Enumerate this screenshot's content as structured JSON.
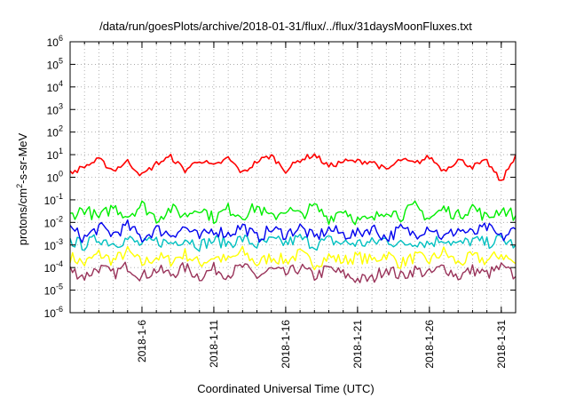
{
  "chart_data": {
    "type": "line",
    "title": "/data/run/goesPlots/archive/2018-01-31/flux/../flux/31daysMoonFluxes.txt",
    "xlabel": "Coordinated Universal Time (UTC)",
    "ylabel_parts": {
      "base": "protons/cm",
      "exp": "2",
      "rest": "-s-sr-MeV"
    },
    "xlim": [
      "2018-01-01",
      "2018-02-01"
    ],
    "ylim": [
      1e-06,
      1000000.0
    ],
    "yscale": "log",
    "grid": true,
    "x_ticks": [
      {
        "label": "2018-1-6",
        "date": "2018-01-06"
      },
      {
        "label": "2018-1-11",
        "date": "2018-01-11"
      },
      {
        "label": "2018-1-16",
        "date": "2018-01-16"
      },
      {
        "label": "2018-1-21",
        "date": "2018-01-21"
      },
      {
        "label": "2018-1-26",
        "date": "2018-01-26"
      },
      {
        "label": "2018-1-31",
        "date": "2018-01-31"
      }
    ],
    "y_ticks": [
      {
        "base": "10",
        "exp": "-6",
        "value": 1e-06
      },
      {
        "base": "10",
        "exp": "-5",
        "value": 1e-05
      },
      {
        "base": "10",
        "exp": "-4",
        "value": 0.0001
      },
      {
        "base": "10",
        "exp": "-3",
        "value": 0.001
      },
      {
        "base": "10",
        "exp": "-2",
        "value": 0.01
      },
      {
        "base": "10",
        "exp": "-1",
        "value": 0.1
      },
      {
        "base": "10",
        "exp": "0",
        "value": 1
      },
      {
        "base": "10",
        "exp": "1",
        "value": 10
      },
      {
        "base": "10",
        "exp": "2",
        "value": 100
      },
      {
        "base": "10",
        "exp": "3",
        "value": 1000
      },
      {
        "base": "10",
        "exp": "4",
        "value": 10000
      },
      {
        "base": "10",
        "exp": "5",
        "value": 100000
      },
      {
        "base": "10",
        "exp": "6",
        "value": 1000000
      }
    ],
    "series": [
      {
        "color": "#ff0000",
        "x": [
          "2018-01-01",
          "2018-01-02",
          "2018-01-03",
          "2018-01-04",
          "2018-01-05",
          "2018-01-06",
          "2018-01-07",
          "2018-01-08",
          "2018-01-09",
          "2018-01-10",
          "2018-01-11",
          "2018-01-12",
          "2018-01-13",
          "2018-01-14",
          "2018-01-15",
          "2018-01-16",
          "2018-01-17",
          "2018-01-18",
          "2018-01-19",
          "2018-01-20",
          "2018-01-21",
          "2018-01-22",
          "2018-01-23",
          "2018-01-24",
          "2018-01-25",
          "2018-01-26",
          "2018-01-27",
          "2018-01-28",
          "2018-01-29",
          "2018-01-30",
          "2018-01-31",
          "2018-02-01"
        ],
        "values": [
          1.5,
          3,
          6,
          2,
          5,
          1.2,
          4,
          8,
          2,
          6,
          3,
          7,
          1.5,
          5,
          9,
          2,
          6,
          10,
          3,
          5,
          5,
          5,
          2,
          6,
          4,
          8,
          2,
          6,
          3,
          5,
          0.6,
          10
        ]
      },
      {
        "color": "#00ee00",
        "x": [
          "2018-01-01",
          "2018-01-02",
          "2018-01-03",
          "2018-01-04",
          "2018-01-05",
          "2018-01-06",
          "2018-01-07",
          "2018-01-08",
          "2018-01-09",
          "2018-01-10",
          "2018-01-11",
          "2018-01-12",
          "2018-01-13",
          "2018-01-14",
          "2018-01-15",
          "2018-01-16",
          "2018-01-17",
          "2018-01-18",
          "2018-01-19",
          "2018-01-20",
          "2018-01-21",
          "2018-01-22",
          "2018-01-23",
          "2018-01-24",
          "2018-01-25",
          "2018-01-26",
          "2018-01-27",
          "2018-01-28",
          "2018-01-29",
          "2018-01-30",
          "2018-01-31",
          "2018-02-01"
        ],
        "values": [
          0.02,
          0.04,
          0.015,
          0.05,
          0.02,
          0.06,
          0.015,
          0.04,
          0.02,
          0.05,
          0.015,
          0.04,
          0.02,
          0.05,
          0.015,
          0.04,
          0.02,
          0.05,
          0.015,
          0.04,
          0.012,
          0.012,
          0.04,
          0.02,
          0.05,
          0.015,
          0.04,
          0.02,
          0.05,
          0.015,
          0.04,
          0.02
        ]
      },
      {
        "color": "#0000ee",
        "x": [
          "2018-01-01",
          "2018-01-02",
          "2018-01-03",
          "2018-01-04",
          "2018-01-05",
          "2018-01-06",
          "2018-01-07",
          "2018-01-08",
          "2018-01-09",
          "2018-01-10",
          "2018-01-11",
          "2018-01-12",
          "2018-01-13",
          "2018-01-14",
          "2018-01-15",
          "2018-01-16",
          "2018-01-17",
          "2018-01-18",
          "2018-01-19",
          "2018-01-20",
          "2018-01-21",
          "2018-01-22",
          "2018-01-23",
          "2018-01-24",
          "2018-01-25",
          "2018-01-26",
          "2018-01-27",
          "2018-01-28",
          "2018-01-29",
          "2018-01-30",
          "2018-01-31",
          "2018-02-01"
        ],
        "values": [
          0.005,
          0.002,
          0.006,
          0.003,
          0.007,
          0.002,
          0.005,
          0.003,
          0.006,
          0.002,
          0.005,
          0.003,
          0.007,
          0.002,
          0.005,
          0.003,
          0.006,
          0.002,
          0.005,
          0.003,
          0.003,
          0.006,
          0.002,
          0.005,
          0.003,
          0.007,
          0.002,
          0.005,
          0.003,
          0.006,
          0.002,
          0.005
        ]
      },
      {
        "color": "#00c0c0",
        "x": [
          "2018-01-01",
          "2018-01-02",
          "2018-01-03",
          "2018-01-04",
          "2018-01-05",
          "2018-01-06",
          "2018-01-07",
          "2018-01-08",
          "2018-01-09",
          "2018-01-10",
          "2018-01-11",
          "2018-01-12",
          "2018-01-13",
          "2018-01-14",
          "2018-01-15",
          "2018-01-16",
          "2018-01-17",
          "2018-01-18",
          "2018-01-19",
          "2018-01-20",
          "2018-01-21",
          "2018-01-22",
          "2018-01-23",
          "2018-01-24",
          "2018-01-25",
          "2018-01-26",
          "2018-01-27",
          "2018-01-28",
          "2018-01-29",
          "2018-01-30",
          "2018-01-31",
          "2018-02-01"
        ],
        "values": [
          0.0015,
          0.001,
          0.002,
          0.0012,
          0.0018,
          0.001,
          0.0015,
          0.0012,
          0.002,
          0.001,
          0.0016,
          0.0012,
          0.0019,
          0.001,
          0.0015,
          0.0012,
          0.002,
          0.001,
          0.0016,
          0.0012,
          0.0012,
          0.0012,
          0.0018,
          0.001,
          0.0015,
          0.0012,
          0.002,
          0.001,
          0.0016,
          0.0012,
          0.0018,
          0.001
        ]
      },
      {
        "color": "#ffff00",
        "x": [
          "2018-01-01",
          "2018-01-02",
          "2018-01-03",
          "2018-01-04",
          "2018-01-05",
          "2018-01-06",
          "2018-01-07",
          "2018-01-08",
          "2018-01-09",
          "2018-01-10",
          "2018-01-11",
          "2018-01-12",
          "2018-01-13",
          "2018-01-14",
          "2018-01-15",
          "2018-01-16",
          "2018-01-17",
          "2018-01-18",
          "2018-01-19",
          "2018-01-20",
          "2018-01-21",
          "2018-01-22",
          "2018-01-23",
          "2018-01-24",
          "2018-01-25",
          "2018-01-26",
          "2018-01-27",
          "2018-01-28",
          "2018-01-29",
          "2018-01-30",
          "2018-01-31",
          "2018-02-01"
        ],
        "values": [
          0.0003,
          0.00015,
          0.0004,
          0.0002,
          0.0005,
          0.00015,
          0.0003,
          0.0002,
          0.0004,
          0.00015,
          0.0003,
          0.0002,
          0.0005,
          0.00015,
          0.0003,
          0.0002,
          0.0004,
          0.00015,
          0.0003,
          0.0002,
          0.0003,
          0.0002,
          0.0004,
          0.00015,
          0.0003,
          0.0002,
          0.0005,
          0.00015,
          0.0003,
          0.0002,
          0.0004,
          0.00015
        ]
      },
      {
        "color": "#99335a",
        "x": [
          "2018-01-01",
          "2018-01-02",
          "2018-01-03",
          "2018-01-04",
          "2018-01-05",
          "2018-01-06",
          "2018-01-07",
          "2018-01-08",
          "2018-01-09",
          "2018-01-10",
          "2018-01-11",
          "2018-01-12",
          "2018-01-13",
          "2018-01-14",
          "2018-01-15",
          "2018-01-16",
          "2018-01-17",
          "2018-01-18",
          "2018-01-19",
          "2018-01-20",
          "2018-01-21",
          "2018-01-22",
          "2018-01-23",
          "2018-01-24",
          "2018-01-25",
          "2018-01-26",
          "2018-01-27",
          "2018-01-28",
          "2018-01-29",
          "2018-01-30",
          "2018-01-31",
          "2018-02-01"
        ],
        "values": [
          8e-05,
          4e-05,
          0.0001,
          5e-05,
          0.00012,
          4e-05,
          8e-05,
          5e-05,
          0.0001,
          4e-05,
          9e-05,
          5e-05,
          0.00011,
          4e-05,
          8e-05,
          5e-05,
          0.0001,
          4e-05,
          9e-05,
          5e-05,
          3e-05,
          3e-05,
          0.0001,
          4e-05,
          8e-05,
          5e-05,
          0.00011,
          4e-05,
          8e-05,
          5e-05,
          0.0001,
          4e-05
        ]
      }
    ]
  }
}
